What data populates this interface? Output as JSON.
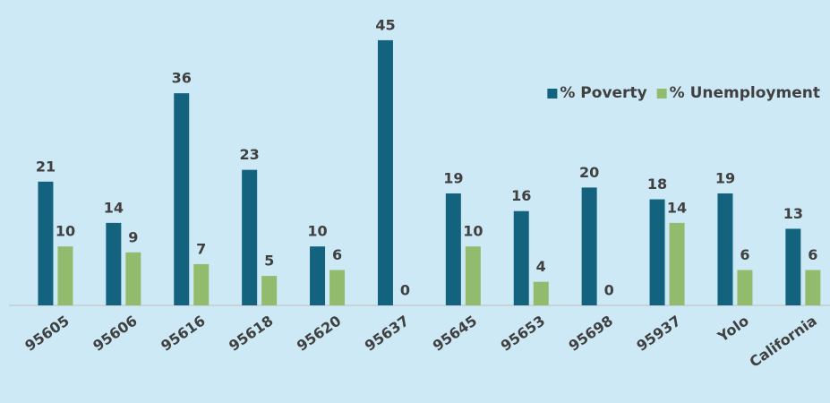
{
  "chart_data": {
    "type": "bar",
    "categories": [
      "95605",
      "95606",
      "95616",
      "95618",
      "95620",
      "95637",
      "95645",
      "95653",
      "95698",
      "95937",
      "Yolo",
      "California"
    ],
    "series": [
      {
        "name": "% Poverty",
        "color": "#13637f",
        "values": [
          21,
          14,
          36,
          23,
          10,
          45,
          19,
          16,
          20,
          18,
          19,
          13
        ]
      },
      {
        "name": "% Unemployment",
        "color": "#93bb6e",
        "values": [
          10,
          9,
          7,
          5,
          6,
          0,
          10,
          4,
          0,
          14,
          6,
          6
        ]
      }
    ],
    "ylim": [
      0,
      50
    ],
    "legend": "top-right",
    "grid": false
  }
}
